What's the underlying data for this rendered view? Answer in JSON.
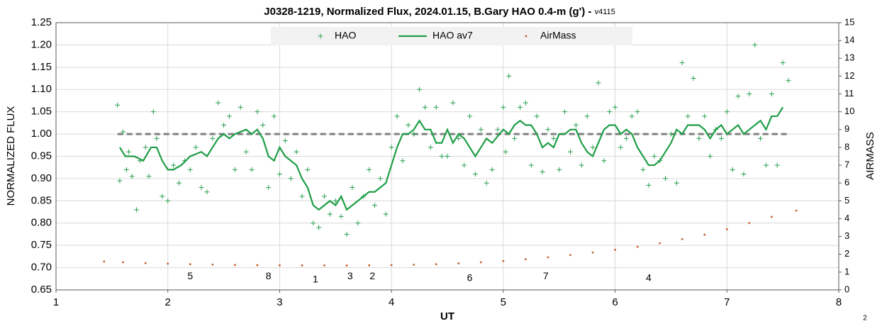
{
  "chart_data": {
    "type": "scatter",
    "title": "J0328-1219, Normalized Flux, 2024.01.15, B.Gary HAO 0.4-m (g') - ",
    "subtitle": "v4115",
    "xlabel": "UT",
    "ylabel": "NORMALIZED FLUX",
    "y2label": "AIRMASS",
    "footnote": "2",
    "xlim": [
      1,
      8
    ],
    "xticks": [
      1,
      2,
      3,
      4,
      5,
      6,
      7,
      8
    ],
    "ylim": [
      0.65,
      1.25
    ],
    "yticks": [
      {
        "value": 0.65,
        "label": "0.65"
      },
      {
        "value": 0.7,
        "label": "0.70"
      },
      {
        "value": 0.75,
        "label": "0.75"
      },
      {
        "value": 0.8,
        "label": "0.80"
      },
      {
        "value": 0.85,
        "label": "0.85"
      },
      {
        "value": 0.9,
        "label": "0.90"
      },
      {
        "value": 0.95,
        "label": "0.95"
      },
      {
        "value": 1.0,
        "label": "1.00"
      },
      {
        "value": 1.05,
        "label": "1.05"
      },
      {
        "value": 1.1,
        "label": "1.10"
      },
      {
        "value": 1.15,
        "label": "1.15"
      },
      {
        "value": 1.2,
        "label": "1.20"
      },
      {
        "value": 1.25,
        "label": "1.25"
      }
    ],
    "y2lim": [
      0,
      15
    ],
    "y2ticks": [
      0,
      1,
      2,
      3,
      4,
      5,
      6,
      7,
      8,
      9,
      10,
      11,
      12,
      13,
      14,
      15
    ],
    "grid": true,
    "legend": "top",
    "reference_line": {
      "y": 1.0,
      "x": [
        1.55,
        7.55
      ],
      "color": "#808080"
    },
    "annotations": [
      {
        "text": "5",
        "x": 2.2,
        "y": 0.68
      },
      {
        "text": "8",
        "x": 2.9,
        "y": 0.68
      },
      {
        "text": "1",
        "x": 3.32,
        "y": 0.673
      },
      {
        "text": "3",
        "x": 3.63,
        "y": 0.68
      },
      {
        "text": "2",
        "x": 3.83,
        "y": 0.68
      },
      {
        "text": "6",
        "x": 4.7,
        "y": 0.676
      },
      {
        "text": "7",
        "x": 5.38,
        "y": 0.68
      },
      {
        "text": "4",
        "x": 6.3,
        "y": 0.676
      }
    ],
    "series": [
      {
        "name": "HAO",
        "color": "#2aa050",
        "style": "plus",
        "x": [
          1.55,
          1.57,
          1.6,
          1.63,
          1.65,
          1.68,
          1.72,
          1.75,
          1.8,
          1.83,
          1.87,
          1.9,
          1.95,
          2.0,
          2.05,
          2.1,
          2.15,
          2.2,
          2.25,
          2.3,
          2.35,
          2.4,
          2.45,
          2.5,
          2.55,
          2.6,
          2.65,
          2.7,
          2.75,
          2.8,
          2.85,
          2.9,
          2.95,
          3.0,
          3.05,
          3.1,
          3.15,
          3.2,
          3.25,
          3.3,
          3.35,
          3.4,
          3.45,
          3.5,
          3.55,
          3.6,
          3.65,
          3.7,
          3.75,
          3.8,
          3.85,
          3.9,
          3.95,
          4.0,
          4.05,
          4.1,
          4.15,
          4.2,
          4.25,
          4.3,
          4.35,
          4.4,
          4.45,
          4.5,
          4.55,
          4.6,
          4.65,
          4.7,
          4.75,
          4.8,
          4.85,
          4.9,
          4.95,
          5.0,
          5.02,
          5.05,
          5.1,
          5.15,
          5.2,
          5.25,
          5.3,
          5.35,
          5.4,
          5.45,
          5.5,
          5.55,
          5.6,
          5.65,
          5.7,
          5.75,
          5.8,
          5.85,
          5.9,
          5.95,
          6.0,
          6.05,
          6.1,
          6.15,
          6.2,
          6.25,
          6.3,
          6.35,
          6.4,
          6.45,
          6.5,
          6.55,
          6.6,
          6.65,
          6.7,
          6.75,
          6.8,
          6.85,
          6.9,
          6.95,
          7.0,
          7.05,
          7.1,
          7.15,
          7.2,
          7.25,
          7.3,
          7.35,
          7.4,
          7.45,
          7.5,
          7.55
        ],
        "values": [
          1.065,
          0.895,
          1.005,
          0.92,
          0.96,
          0.905,
          0.83,
          0.94,
          0.97,
          0.905,
          1.05,
          0.99,
          0.86,
          0.85,
          0.93,
          0.89,
          0.94,
          0.92,
          0.97,
          0.88,
          0.87,
          0.99,
          1.07,
          1.02,
          1.04,
          0.92,
          1.06,
          0.96,
          0.92,
          1.05,
          1.02,
          0.88,
          1.04,
          0.91,
          0.985,
          0.9,
          0.96,
          0.86,
          0.92,
          0.8,
          0.79,
          0.86,
          0.82,
          0.85,
          0.815,
          0.775,
          0.88,
          0.8,
          0.86,
          0.92,
          0.84,
          0.9,
          0.82,
          0.97,
          1.04,
          0.94,
          1.02,
          1.0,
          1.1,
          1.06,
          0.97,
          1.06,
          0.95,
          0.95,
          1.07,
          0.99,
          0.93,
          1.04,
          0.91,
          1.01,
          0.89,
          0.92,
          1.01,
          1.06,
          0.96,
          1.13,
          0.99,
          1.06,
          1.07,
          0.93,
          1.04,
          0.915,
          1.01,
          0.99,
          0.92,
          1.05,
          0.96,
          1.02,
          0.93,
          1.04,
          0.97,
          1.115,
          0.94,
          1.05,
          1.06,
          0.97,
          0.99,
          1.04,
          1.05,
          0.92,
          0.885,
          0.95,
          0.94,
          0.9,
          1.0,
          0.89,
          1.16,
          1.04,
          1.125,
          0.99,
          1.04,
          0.95,
          1.01,
          0.99,
          1.05,
          0.92,
          1.085,
          0.91,
          1.09,
          1.2,
          0.99,
          0.93,
          1.09,
          0.93,
          1.16,
          1.12
        ]
      },
      {
        "name": "HAO av7",
        "color": "#1e9e46",
        "style": "line",
        "x": [
          1.57,
          1.62,
          1.7,
          1.78,
          1.85,
          1.9,
          1.95,
          2.0,
          2.05,
          2.12,
          2.2,
          2.3,
          2.35,
          2.4,
          2.45,
          2.5,
          2.55,
          2.6,
          2.7,
          2.75,
          2.8,
          2.85,
          2.9,
          2.95,
          3.0,
          3.05,
          3.1,
          3.15,
          3.2,
          3.25,
          3.3,
          3.35,
          3.4,
          3.45,
          3.5,
          3.55,
          3.6,
          3.65,
          3.7,
          3.75,
          3.8,
          3.85,
          3.9,
          3.95,
          4.0,
          4.05,
          4.1,
          4.15,
          4.2,
          4.25,
          4.3,
          4.35,
          4.4,
          4.45,
          4.5,
          4.55,
          4.6,
          4.65,
          4.7,
          4.75,
          4.8,
          4.85,
          4.9,
          5.0,
          5.05,
          5.1,
          5.15,
          5.2,
          5.25,
          5.3,
          5.35,
          5.4,
          5.45,
          5.5,
          5.55,
          5.6,
          5.65,
          5.7,
          5.75,
          5.8,
          5.85,
          5.9,
          5.95,
          6.0,
          6.05,
          6.1,
          6.15,
          6.2,
          6.25,
          6.3,
          6.35,
          6.4,
          6.45,
          6.5,
          6.55,
          6.6,
          6.65,
          6.7,
          6.75,
          6.8,
          6.85,
          6.9,
          6.95,
          7.0,
          7.05,
          7.1,
          7.15,
          7.2,
          7.25,
          7.3,
          7.35,
          7.4,
          7.45,
          7.5
        ],
        "values": [
          0.97,
          0.95,
          0.95,
          0.94,
          0.97,
          0.97,
          0.94,
          0.92,
          0.92,
          0.93,
          0.95,
          0.96,
          0.95,
          0.97,
          0.99,
          1.0,
          0.99,
          1.0,
          1.01,
          1.0,
          1.01,
          0.99,
          0.95,
          0.94,
          0.97,
          0.95,
          0.94,
          0.93,
          0.9,
          0.88,
          0.84,
          0.83,
          0.84,
          0.85,
          0.84,
          0.86,
          0.83,
          0.84,
          0.85,
          0.86,
          0.87,
          0.87,
          0.88,
          0.89,
          0.93,
          0.97,
          1.0,
          1.0,
          1.01,
          1.03,
          1.01,
          1.01,
          0.98,
          0.98,
          1.01,
          0.98,
          1.0,
          0.99,
          0.97,
          0.95,
          0.97,
          0.99,
          0.98,
          1.01,
          1.0,
          1.02,
          1.03,
          1.02,
          1.02,
          1.0,
          0.97,
          0.98,
          0.97,
          1.0,
          1.0,
          1.01,
          1.01,
          0.98,
          0.96,
          0.95,
          0.98,
          1.01,
          1.02,
          1.02,
          1.0,
          1.01,
          1.0,
          0.97,
          0.95,
          0.93,
          0.93,
          0.94,
          0.96,
          0.98,
          1.01,
          1.0,
          1.02,
          1.02,
          1.02,
          1.01,
          0.99,
          1.01,
          1.02,
          1.0,
          1.01,
          1.02,
          1.0,
          1.01,
          1.02,
          1.03,
          1.01,
          1.04,
          1.04,
          1.06
        ]
      },
      {
        "name": "AirMass",
        "color": "#c0602a",
        "style": "dot",
        "axis": "y2",
        "x": [
          1.43,
          1.6,
          1.8,
          2.0,
          2.2,
          2.4,
          2.6,
          2.8,
          3.0,
          3.2,
          3.4,
          3.6,
          3.8,
          4.0,
          4.2,
          4.4,
          4.6,
          4.8,
          5.0,
          5.2,
          5.4,
          5.6,
          5.8,
          6.0,
          6.2,
          6.4,
          6.6,
          6.8,
          7.0,
          7.2,
          7.4,
          7.62
        ],
        "values": [
          1.6,
          1.55,
          1.5,
          1.47,
          1.44,
          1.42,
          1.4,
          1.39,
          1.38,
          1.37,
          1.37,
          1.37,
          1.38,
          1.39,
          1.41,
          1.44,
          1.49,
          1.55,
          1.62,
          1.72,
          1.83,
          1.96,
          2.1,
          2.25,
          2.42,
          2.62,
          2.85,
          3.1,
          3.4,
          3.75,
          4.1,
          4.45
        ]
      }
    ]
  }
}
